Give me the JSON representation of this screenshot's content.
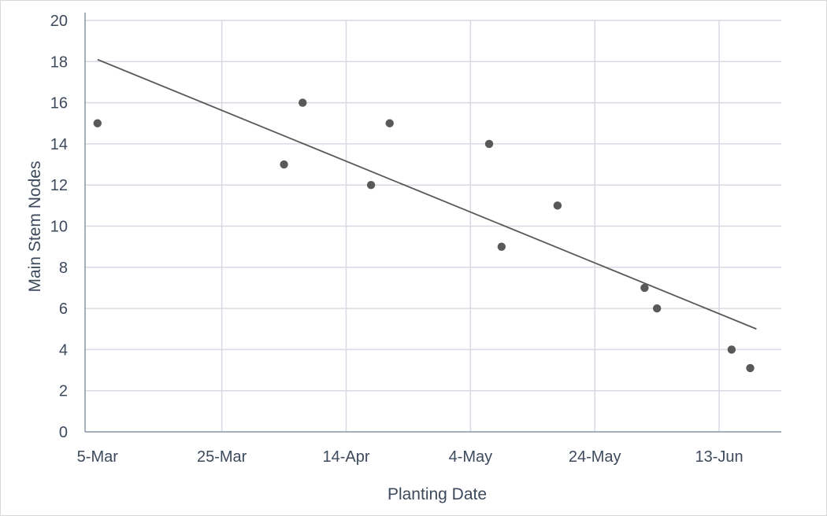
{
  "chart_data": {
    "type": "scatter",
    "title": "",
    "xlabel": "Planting Date",
    "ylabel": "Main Stem Nodes",
    "x_ticks": [
      "5-Mar",
      "25-Mar",
      "14-Apr",
      "4-May",
      "24-May",
      "13-Jun"
    ],
    "x_tick_dates": [
      "2000-03-05",
      "2000-03-25",
      "2000-04-14",
      "2000-05-04",
      "2000-05-24",
      "2000-06-13"
    ],
    "xlim": [
      "2000-03-03",
      "2000-06-23"
    ],
    "y_ticks": [
      "0",
      "2",
      "4",
      "6",
      "8",
      "10",
      "12",
      "14",
      "16",
      "18",
      "20"
    ],
    "ylim": [
      0,
      20
    ],
    "grid": true,
    "series": [
      {
        "points": [
          {
            "x": "2000-03-05",
            "y": 15
          },
          {
            "x": "2000-04-04",
            "y": 13
          },
          {
            "x": "2000-04-07",
            "y": 16
          },
          {
            "x": "2000-04-18",
            "y": 12
          },
          {
            "x": "2000-04-21",
            "y": 15
          },
          {
            "x": "2000-05-07",
            "y": 14
          },
          {
            "x": "2000-05-09",
            "y": 9
          },
          {
            "x": "2000-05-18",
            "y": 11
          },
          {
            "x": "2000-06-01",
            "y": 7
          },
          {
            "x": "2000-06-03",
            "y": 6
          },
          {
            "x": "2000-06-15",
            "y": 4
          },
          {
            "x": "2000-06-18",
            "y": 3.1
          }
        ],
        "color": "#595959"
      }
    ],
    "trendline": {
      "type": "linear",
      "start": {
        "x": "2000-03-05",
        "y": 18.1
      },
      "end": {
        "x": "2000-06-19",
        "y": 5.0
      },
      "color": "#595959"
    },
    "colors": {
      "grid": "#d9d9e3",
      "axis": "#8a93a6",
      "text": "#3d4a5c"
    }
  }
}
